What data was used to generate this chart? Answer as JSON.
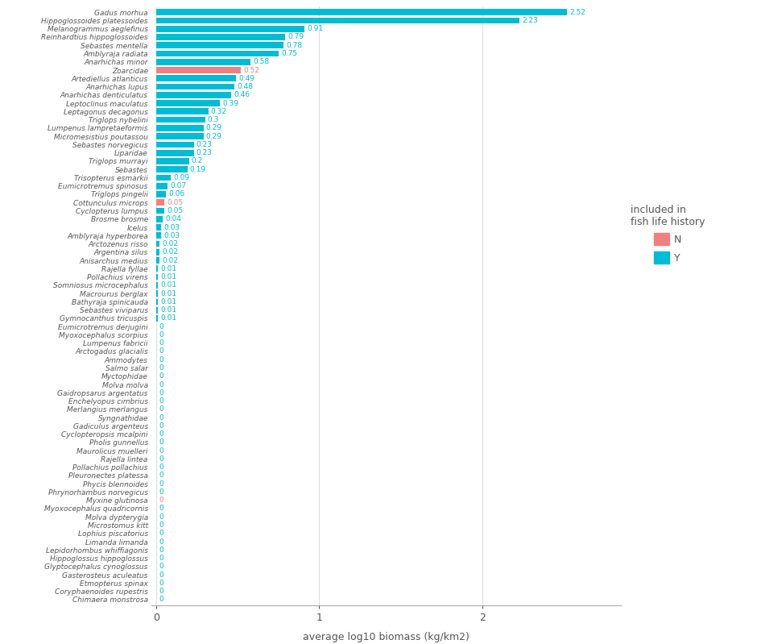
{
  "species": [
    "Gadus morhua",
    "Hippoglossoides platessoides",
    "Melanogrammus aeglefinus",
    "Reinhardtius hippoglossoides",
    "Sebastes mentella",
    "Amblyraja radiata",
    "Anarhichas minor",
    "Zoarcidae",
    "Artediellus atlanticus",
    "Anarhichas lupus",
    "Anarhichas denticulatus",
    "Leptoclinus maculatus",
    "Leptagonus decagonus",
    "Triglops nybelini",
    "Lumpenus lampretaeformis",
    "Micromesistius poutassou",
    "Sebastes norvegicus",
    "Liparidae",
    "Triglops murrayi",
    "Sebastes",
    "Trisopterus esmarkii",
    "Eumicrotremus spinosus",
    "Triglops pingelii",
    "Cottunculus microps",
    "Cyclopterus lumpus",
    "Brosme brosme",
    "Icelus",
    "Amblyraja hyperborea",
    "Arctozenus risso",
    "Argentina silus",
    "Anisarchus medius",
    "Rajella fyllae",
    "Pollachius virens",
    "Somniosus microcephalus",
    "Macrourus berglax",
    "Bathyraja spinicauda",
    "Sebastes viviparus",
    "Gymnocanthus tricuspis",
    "Eumicrotremus derjugini",
    "Myoxocephalus scorpius",
    "Lumpenus fabricii",
    "Arctogadus glacialis",
    "Ammodytes",
    "Salmo salar",
    "Myctophidae",
    "Molva molva",
    "Gaidropsarus argentatus",
    "Enchelyopus cimbrius",
    "Merlangius merlangus",
    "Syngnathidae",
    "Gadiculus argenteus",
    "Cyclopteropsis mcalpini",
    "Pholis gunnellus",
    "Maurolicus muelleri",
    "Rajella lintea",
    "Pollachius pollachius",
    "Pleuronectes platessa",
    "Phycis blennoides",
    "Phrynorhambus norvegicus",
    "Myxine glutinosa",
    "Myoxocephalus quadricornis",
    "Molva dypterygia",
    "Microstomus kitt",
    "Lophius piscatorius",
    "Limanda limanda",
    "Lepidorhombus whiffiagonis",
    "Hippoglossus hippoglossus",
    "Glyptocephalus cynoglossus",
    "Gasterosteus aculeatus",
    "Etmopterus spinax",
    "Coryphaenoides rupestris",
    "Chimaera monstrosa"
  ],
  "values": [
    2.52,
    2.23,
    0.91,
    0.79,
    0.78,
    0.75,
    0.58,
    0.52,
    0.49,
    0.48,
    0.46,
    0.39,
    0.32,
    0.3,
    0.29,
    0.29,
    0.23,
    0.23,
    0.2,
    0.19,
    0.09,
    0.07,
    0.06,
    0.05,
    0.05,
    0.04,
    0.03,
    0.03,
    0.02,
    0.02,
    0.02,
    0.01,
    0.01,
    0.01,
    0.01,
    0.01,
    0.01,
    0.01,
    0,
    0,
    0,
    0,
    0,
    0,
    0,
    0,
    0,
    0,
    0,
    0,
    0,
    0,
    0,
    0,
    0,
    0,
    0,
    0,
    0,
    0,
    0,
    0,
    0,
    0,
    0,
    0,
    0,
    0,
    0,
    0,
    0,
    0
  ],
  "included": [
    "Y",
    "Y",
    "Y",
    "Y",
    "Y",
    "Y",
    "Y",
    "N",
    "Y",
    "Y",
    "Y",
    "Y",
    "Y",
    "Y",
    "Y",
    "Y",
    "Y",
    "Y",
    "Y",
    "Y",
    "Y",
    "Y",
    "Y",
    "N",
    "Y",
    "Y",
    "Y",
    "Y",
    "Y",
    "Y",
    "Y",
    "Y",
    "Y",
    "Y",
    "Y",
    "Y",
    "Y",
    "Y",
    "Y",
    "Y",
    "Y",
    "Y",
    "Y",
    "Y",
    "Y",
    "Y",
    "Y",
    "Y",
    "Y",
    "Y",
    "Y",
    "Y",
    "Y",
    "Y",
    "Y",
    "Y",
    "Y",
    "Y",
    "Y",
    "N",
    "Y",
    "Y",
    "Y",
    "Y",
    "Y",
    "Y",
    "Y",
    "Y",
    "Y",
    "Y",
    "Y",
    "Y"
  ],
  "color_Y": "#00BCD4",
  "color_N": "#F08080",
  "xlabel": "average log10 biomass (kg/km2)",
  "legend_title": "included in\nfish life history",
  "background_color": "#ffffff",
  "grid_color": "#e0e0e0",
  "label_color_Y": "#00BCD4",
  "label_color_N": "#F08080",
  "xlim_max": 2.85,
  "bar_height": 0.75
}
